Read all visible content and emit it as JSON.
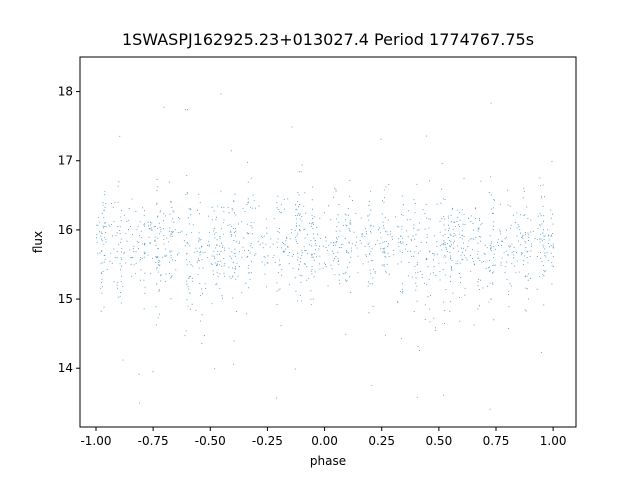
{
  "chart_data": {
    "type": "scatter",
    "title": "1SWASPJ162925.23+013027.4 Period 1774767.75s",
    "xlabel": "phase",
    "ylabel": "flux",
    "xlim": [
      -1.07,
      1.1
    ],
    "ylim": [
      13.15,
      18.5
    ],
    "x_ticks": [
      "-1.00",
      "-0.75",
      "-0.50",
      "-0.25",
      "0.00",
      "0.25",
      "0.50",
      "0.75",
      "1.00"
    ],
    "y_ticks": [
      "14",
      "15",
      "16",
      "17",
      "18"
    ],
    "grid": false,
    "point_color": "#1f77b4",
    "series": [
      {
        "note_free": true,
        "baseline_flux": 15.8,
        "scatter_core_range": [
          15.0,
          16.6
        ],
        "outlier_range": [
          13.4,
          18.25
        ],
        "phase_range": [
          -1.0,
          1.0
        ],
        "point_count_approx": 30000,
        "vertical_streaks_phase": [
          -0.97,
          -0.9,
          -0.8,
          -0.73,
          -0.67,
          -0.6,
          -0.55,
          -0.48,
          -0.45,
          -0.4,
          -0.33,
          -0.2,
          -0.12,
          -0.1,
          -0.05,
          0.05,
          0.1,
          0.2,
          0.27,
          0.33,
          0.4,
          0.45,
          0.52,
          0.55,
          0.6,
          0.67,
          0.73,
          0.8,
          0.88,
          0.95,
          1.0
        ],
        "dip_regions_phase": [
          [
            -0.62,
            -0.5
          ],
          [
            0.4,
            0.5
          ]
        ],
        "dip_min_flux": 14.3
      }
    ]
  }
}
